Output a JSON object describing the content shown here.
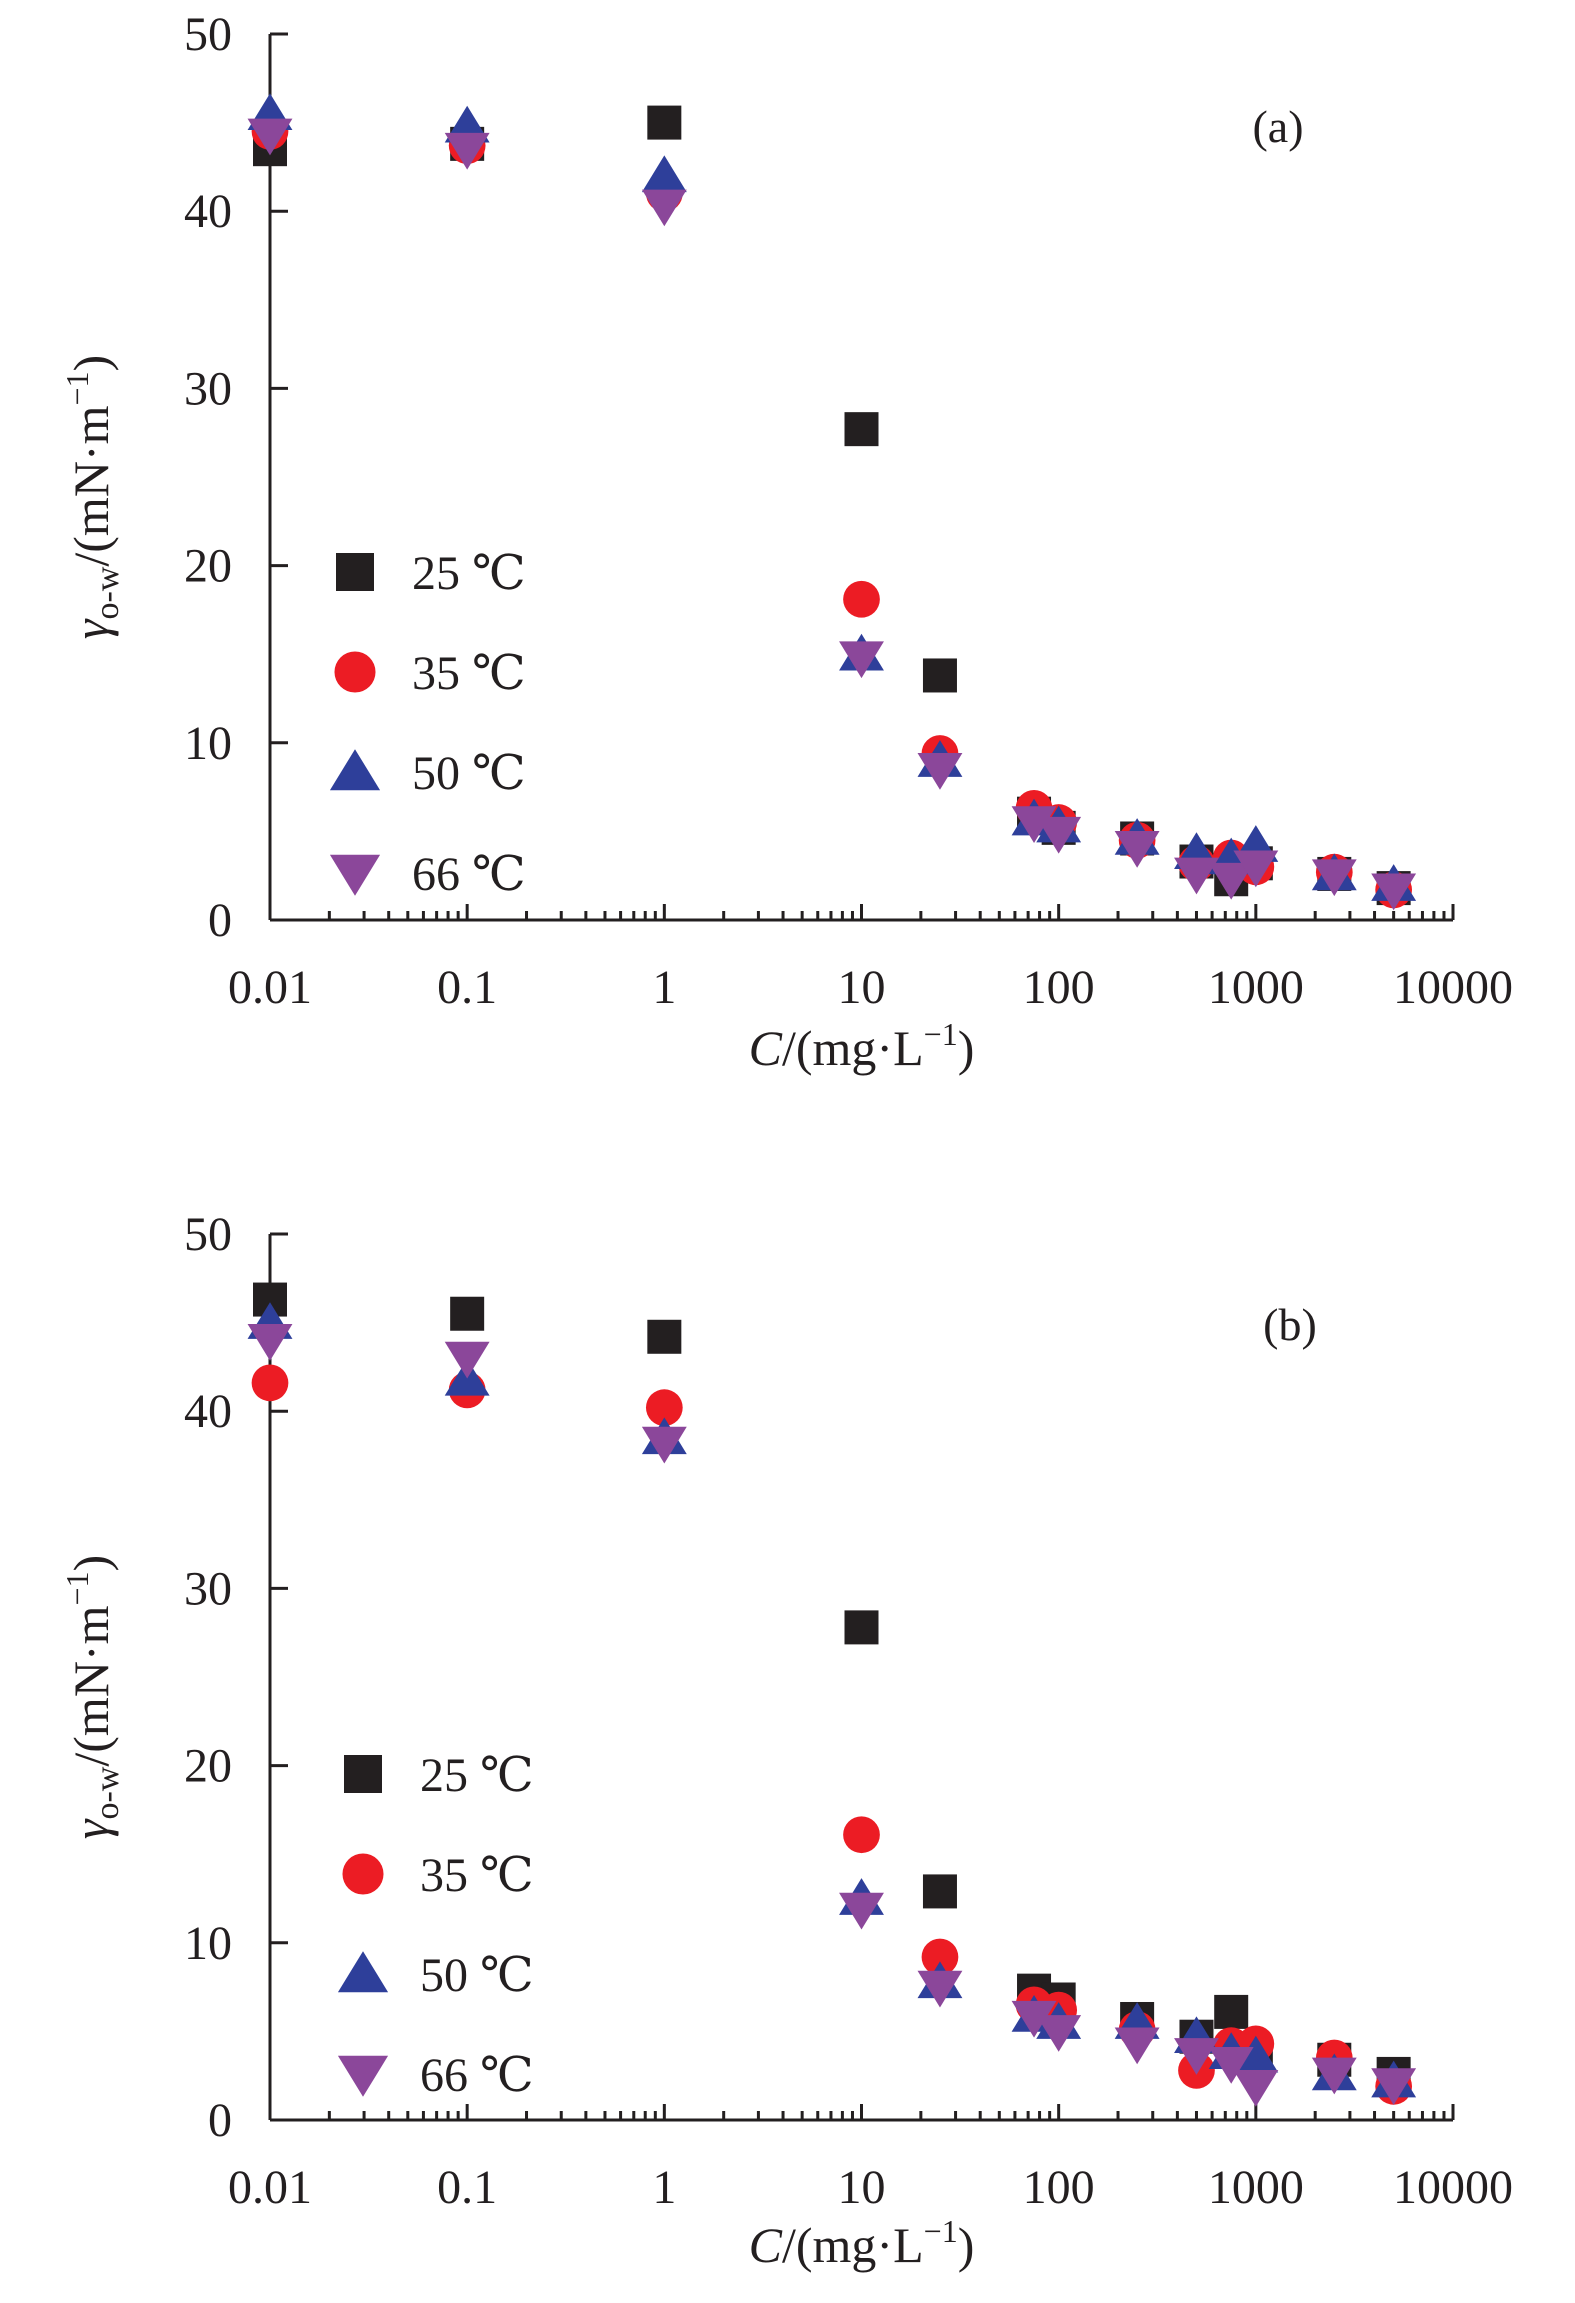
{
  "chart_data": [
    {
      "type": "scatter",
      "panel_label": "(a)",
      "x_scale": "log",
      "xlim": [
        0.01,
        10000
      ],
      "ylim": [
        0,
        50
      ],
      "x_ticks": [
        "0.01",
        "0.1",
        "1",
        "10",
        "100",
        "1000",
        "10000"
      ],
      "y_ticks": [
        "0",
        "10",
        "20",
        "30",
        "40",
        "50"
      ],
      "ylabel": {
        "main": "γ",
        "sub": "o-w",
        "rest": "/(mN·m",
        "sup": "−1",
        "close": ")"
      },
      "xlabel": {
        "main": "C",
        "rest": "/(mg·L",
        "sup": "−1",
        "close": ")"
      },
      "legend_position": "left",
      "series": [
        {
          "name": "25 ℃",
          "marker": "square",
          "color": "#231f20",
          "x": [
            0.01,
            0.1,
            1,
            10,
            25,
            75,
            100,
            250,
            500,
            750,
            1000,
            2500,
            5000
          ],
          "y": [
            43.5,
            43.8,
            45.0,
            27.7,
            13.8,
            6.0,
            5.2,
            4.6,
            3.3,
            2.3,
            3.2,
            2.6,
            1.8
          ]
        },
        {
          "name": "35 ℃",
          "marker": "circle",
          "color": "#ec1c24",
          "x": [
            0.01,
            0.1,
            1,
            10,
            25,
            75,
            100,
            250,
            500,
            750,
            1000,
            2500,
            5000
          ],
          "y": [
            44.5,
            43.7,
            41.0,
            18.1,
            9.4,
            6.3,
            5.5,
            4.5,
            3.2,
            3.5,
            3.0,
            2.7,
            1.7
          ]
        },
        {
          "name": "50 ℃",
          "marker": "triangle-up",
          "color": "#2e3f9a",
          "x": [
            0.01,
            0.1,
            1,
            10,
            25,
            75,
            100,
            250,
            500,
            750,
            1000,
            2500,
            5000
          ],
          "y": [
            45.5,
            44.8,
            42.0,
            15.0,
            9.0,
            5.7,
            5.3,
            4.6,
            3.8,
            3.5,
            4.2,
            2.6,
            2.0
          ]
        },
        {
          "name": "66 ℃",
          "marker": "triangle-down",
          "color": "#8b479a",
          "x": [
            0.01,
            0.1,
            1,
            10,
            25,
            75,
            100,
            250,
            500,
            750,
            1000,
            2500,
            5000
          ],
          "y": [
            44.3,
            43.5,
            40.3,
            14.8,
            8.5,
            5.5,
            4.9,
            4.1,
            2.6,
            2.3,
            3.0,
            2.5,
            1.7
          ]
        }
      ]
    },
    {
      "type": "scatter",
      "panel_label": "(b)",
      "x_scale": "log",
      "xlim": [
        0.01,
        10000
      ],
      "ylim": [
        0,
        50
      ],
      "x_ticks": [
        "0.01",
        "0.1",
        "1",
        "10",
        "100",
        "1000",
        "10000"
      ],
      "y_ticks": [
        "0",
        "10",
        "20",
        "30",
        "40",
        "50"
      ],
      "ylabel": {
        "main": "γ",
        "sub": "o-w",
        "rest": "/(mN·m",
        "sup": "−1",
        "close": ")"
      },
      "xlabel": {
        "main": "C",
        "rest": "/(mg·L",
        "sup": "−1",
        "close": ")"
      },
      "legend_position": "left",
      "series": [
        {
          "name": "25 ℃",
          "marker": "square",
          "color": "#231f20",
          "x": [
            0.01,
            0.1,
            1,
            10,
            25,
            75,
            100,
            250,
            500,
            750,
            1000,
            2500,
            5000
          ],
          "y": [
            46.3,
            45.5,
            44.2,
            27.8,
            12.9,
            7.3,
            6.8,
            5.7,
            4.7,
            6.1,
            3.5,
            3.4,
            2.6
          ]
        },
        {
          "name": "35 ℃",
          "marker": "circle",
          "color": "#ec1c24",
          "x": [
            0.01,
            0.1,
            1,
            10,
            25,
            75,
            100,
            250,
            500,
            750,
            1000,
            2500,
            5000
          ],
          "y": [
            41.6,
            41.2,
            40.2,
            16.1,
            9.2,
            6.5,
            6.2,
            5.1,
            2.8,
            4.2,
            4.3,
            3.5,
            1.9
          ]
        },
        {
          "name": "50 ℃",
          "marker": "triangle-up",
          "color": "#2e3f9a",
          "x": [
            0.01,
            0.1,
            1,
            10,
            25,
            75,
            100,
            250,
            500,
            750,
            1000,
            2500,
            5000
          ],
          "y": [
            45.0,
            41.8,
            38.5,
            12.5,
            7.8,
            5.9,
            5.5,
            5.5,
            4.7,
            3.8,
            3.6,
            2.6,
            2.2
          ]
        },
        {
          "name": "66 ℃",
          "marker": "triangle-down",
          "color": "#8b479a",
          "x": [
            0.01,
            0.1,
            1,
            10,
            25,
            75,
            100,
            250,
            500,
            750,
            1000,
            2500,
            5000
          ],
          "y": [
            44.0,
            43.0,
            38.2,
            11.9,
            7.5,
            5.8,
            5.0,
            4.3,
            3.7,
            3.2,
            1.9,
            2.6,
            2.0
          ]
        }
      ]
    }
  ]
}
